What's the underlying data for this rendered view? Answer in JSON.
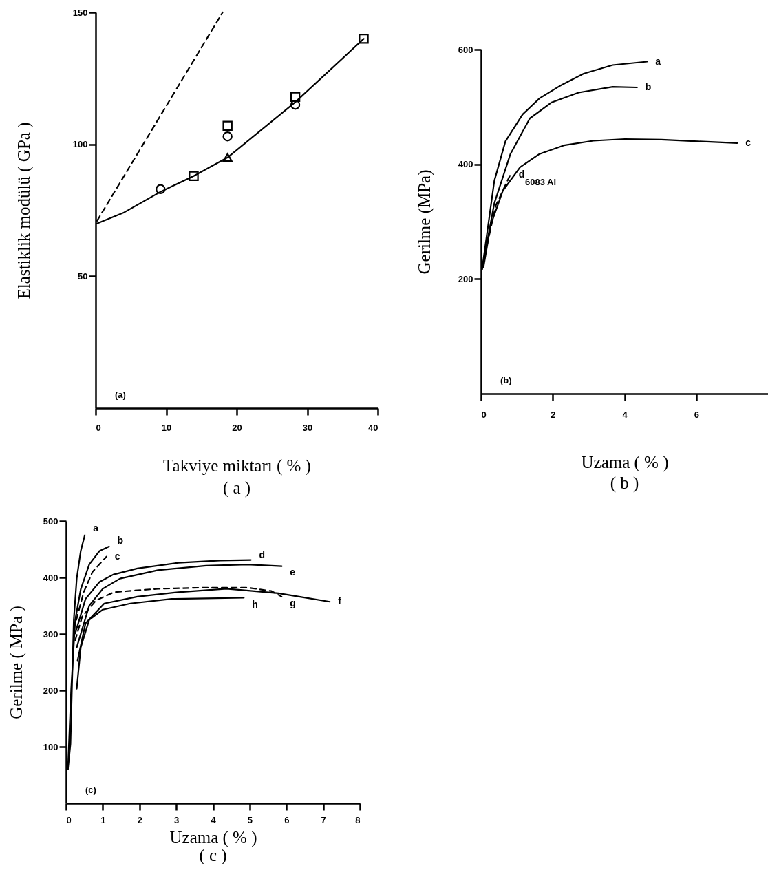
{
  "chart_data": [
    {
      "type": "line",
      "title": "( a )",
      "xlabel": "Takviye miktarı ( % )",
      "ylabel": "Elastiklik modülü ( GPa )",
      "xlim": [
        0,
        40
      ],
      "xticks": [
        0,
        10,
        20,
        30,
        40
      ],
      "ylim": [
        0,
        150
      ],
      "yticks": [
        50,
        100,
        150
      ],
      "annotations": [
        "(a)"
      ],
      "series": [
        {
          "type": "line",
          "color": "#000000",
          "line_style": "solid",
          "marker": "none",
          "x": [
            0.2,
            3.9,
            9.2,
            13.9,
            18.7,
            28.3,
            38
          ],
          "values": [
            70,
            74,
            82,
            88,
            95,
            116,
            140
          ]
        },
        {
          "type": "line",
          "color": "#000000",
          "line_style": "dashed",
          "marker": "none",
          "x": [
            0.2,
            18
          ],
          "values": [
            71,
            150
          ]
        },
        {
          "type": "scatter",
          "color": "#000000",
          "marker": "circle",
          "x": [
            9.2,
            18.7,
            28.3
          ],
          "values": [
            83,
            103,
            115
          ]
        },
        {
          "type": "scatter",
          "color": "#000000",
          "marker": "square",
          "x": [
            13.9,
            18.7,
            28.3,
            38
          ],
          "values": [
            88,
            107,
            118,
            140
          ]
        },
        {
          "type": "scatter",
          "color": "#000000",
          "marker": "triangle",
          "x": [
            18.7
          ],
          "values": [
            95
          ]
        }
      ]
    },
    {
      "type": "line",
      "title": "( b )",
      "xlabel": "Uzama ( % )",
      "ylabel": "Gerilme (MPa)",
      "xlim": [
        0,
        8
      ],
      "xticks": [
        0,
        2,
        4,
        6
      ],
      "ylim": [
        0,
        600
      ],
      "yticks": [
        200,
        400,
        600
      ],
      "annotations": [
        "(b)",
        "6083 Al"
      ],
      "series": [
        {
          "name": "a",
          "color": "#000000",
          "line_style": "solid",
          "x": [
            0.03,
            0.37,
            0.68,
            1.16,
            1.63,
            2.18,
            2.86,
            3.67,
            4.63
          ],
          "values": [
            217,
            371,
            440,
            487,
            515,
            536,
            558,
            573,
            579
          ]
        },
        {
          "name": "b",
          "color": "#000000",
          "line_style": "solid",
          "x": [
            0.03,
            0.37,
            0.82,
            1.36,
            1.97,
            2.72,
            3.67,
            4.35
          ],
          "values": [
            217,
            332,
            418,
            480,
            508,
            525,
            535,
            534
          ]
        },
        {
          "name": "c",
          "color": "#000000",
          "line_style": "solid",
          "x": [
            0.07,
            0.27,
            0.61,
            1.09,
            1.63,
            2.31,
            3.13,
            4.01,
            5.03,
            6.05,
            7.14
          ],
          "values": [
            221,
            294,
            354,
            395,
            418,
            433,
            441,
            444,
            443,
            440,
            437
          ]
        },
        {
          "name": "d",
          "color": "#000000",
          "line_style": "dashed",
          "x": [
            0.17,
            0.41,
            0.82
          ],
          "values": [
            260,
            328,
            382
          ]
        }
      ]
    },
    {
      "type": "line",
      "title": "( c )",
      "xlabel": "Uzama  ( % )",
      "ylabel": "Gerilme ( MPa )",
      "xlim": [
        0,
        8
      ],
      "xticks": [
        0,
        1,
        2,
        3,
        4,
        5,
        6,
        7,
        8
      ],
      "ylim": [
        0,
        500
      ],
      "yticks": [
        100,
        200,
        300,
        400,
        500
      ],
      "annotations": [
        "(c)"
      ],
      "series": [
        {
          "name": "a",
          "color": "#000000",
          "line_style": "solid",
          "x": [
            0.05,
            0.12,
            0.21,
            0.29,
            0.4,
            0.51
          ],
          "values": [
            60,
            105,
            325,
            398,
            447,
            475
          ]
        },
        {
          "name": "b",
          "color": "#000000",
          "line_style": "solid",
          "x": [
            0.05,
            0.14,
            0.25,
            0.4,
            0.63,
            0.91,
            1.17
          ],
          "values": [
            60,
            203,
            325,
            379,
            423,
            447,
            455
          ]
        },
        {
          "name": "c",
          "color": "#000000",
          "line_style": "dashed",
          "x": [
            0.28,
            0.48,
            0.72,
            1.1
          ],
          "values": [
            325,
            374,
            410,
            437
          ]
        },
        {
          "name": "d",
          "color": "#000000",
          "line_style": "solid",
          "x": [
            0.25,
            0.53,
            0.91,
            1.28,
            1.94,
            3.06,
            4.19,
            5.03
          ],
          "values": [
            301,
            362,
            392,
            405,
            416,
            426,
            430,
            431
          ]
        },
        {
          "name": "e",
          "color": "#000000",
          "line_style": "solid",
          "x": [
            0.29,
            0.63,
            1.0,
            1.47,
            2.5,
            3.81,
            4.94,
            5.87
          ],
          "values": [
            276,
            350,
            380,
            398,
            413,
            421,
            423,
            420
          ]
        },
        {
          "name": "f",
          "color": "#000000",
          "line_style": "solid",
          "x": [
            0.31,
            0.53,
            1.04,
            1.94,
            3.06,
            4.37,
            5.78,
            6.43,
            7.18
          ],
          "values": [
            252,
            319,
            354,
            366,
            374,
            380,
            372,
            365,
            357
          ]
        },
        {
          "name": "g",
          "color": "#000000",
          "line_style": "dashed",
          "x": [
            0.25,
            0.44,
            0.81,
            1.3,
            2.5,
            3.81,
            4.94,
            5.59,
            5.87
          ],
          "values": [
            289,
            331,
            359,
            374,
            380,
            382,
            382,
            376,
            366
          ]
        },
        {
          "name": "h",
          "color": "#000000",
          "line_style": "solid",
          "x": [
            0.29,
            0.4,
            0.63,
            1.0,
            1.75,
            2.87,
            3.81,
            4.84
          ],
          "values": [
            203,
            276,
            325,
            343,
            354,
            362,
            363,
            364
          ]
        }
      ]
    }
  ]
}
